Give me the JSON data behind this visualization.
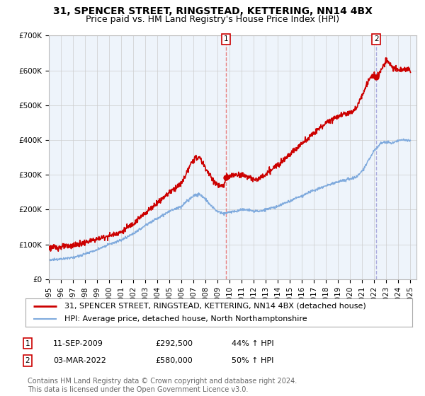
{
  "title": "31, SPENCER STREET, RINGSTEAD, KETTERING, NN14 4BX",
  "subtitle": "Price paid vs. HM Land Registry's House Price Index (HPI)",
  "ylim": [
    0,
    700000
  ],
  "yticks": [
    0,
    100000,
    200000,
    300000,
    400000,
    500000,
    600000,
    700000
  ],
  "ytick_labels": [
    "£0",
    "£100K",
    "£200K",
    "£300K",
    "£400K",
    "£500K",
    "£600K",
    "£700K"
  ],
  "xlim_start": 1995.0,
  "xlim_end": 2025.5,
  "xticks": [
    1995,
    1996,
    1997,
    1998,
    1999,
    2000,
    2001,
    2002,
    2003,
    2004,
    2005,
    2006,
    2007,
    2008,
    2009,
    2010,
    2011,
    2012,
    2013,
    2014,
    2015,
    2016,
    2017,
    2018,
    2019,
    2020,
    2021,
    2022,
    2023,
    2024,
    2025
  ],
  "grid_color": "#cccccc",
  "background_color": "#ffffff",
  "plot_bg_color": "#eef4fb",
  "sale1_x": 2009.7,
  "sale1_y": 292500,
  "sale1_label": "1",
  "sale2_x": 2022.17,
  "sale2_y": 580000,
  "sale2_label": "2",
  "line1_color": "#cc0000",
  "line2_color": "#7faadd",
  "vline_color": "#e88080",
  "vline2_color": "#aaaadd",
  "legend_line1": "31, SPENCER STREET, RINGSTEAD, KETTERING, NN14 4BX (detached house)",
  "legend_line2": "HPI: Average price, detached house, North Northamptonshire",
  "annotation1_label": "1",
  "annotation1_date": "11-SEP-2009",
  "annotation1_price": "£292,500",
  "annotation1_hpi": "44% ↑ HPI",
  "annotation2_label": "2",
  "annotation2_date": "03-MAR-2022",
  "annotation2_price": "£580,000",
  "annotation2_hpi": "50% ↑ HPI",
  "footer": "Contains HM Land Registry data © Crown copyright and database right 2024.\nThis data is licensed under the Open Government Licence v3.0.",
  "title_fontsize": 10,
  "subtitle_fontsize": 9,
  "tick_fontsize": 7.5,
  "legend_fontsize": 8,
  "annotation_fontsize": 8,
  "footer_fontsize": 7
}
